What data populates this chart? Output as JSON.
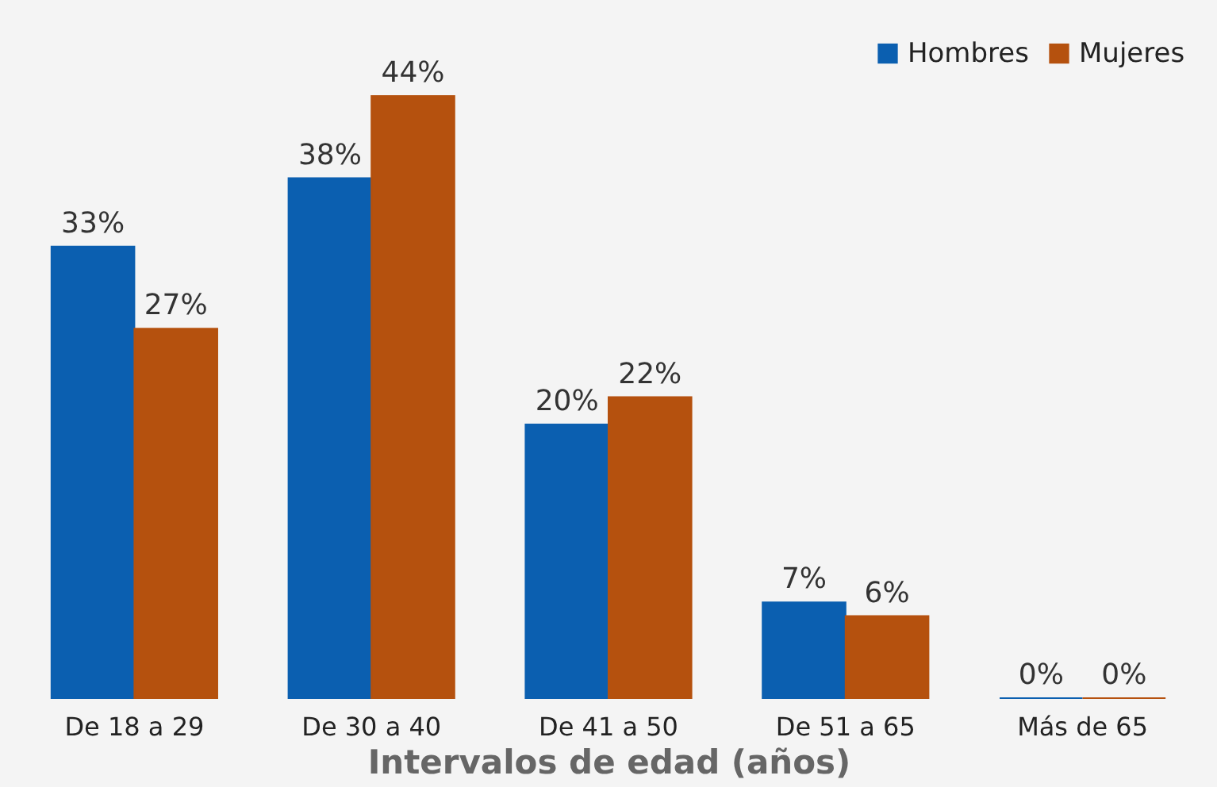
{
  "chart_data": {
    "type": "bar",
    "xlabel": "Intervalos de edad (años)",
    "categories": [
      "De 18 a 29",
      "De 30 a 40",
      "De 41 a 50",
      "De 51 a 65",
      "Más de 65"
    ],
    "series": [
      {
        "name": "Hombres",
        "color": "#0b5fb0",
        "values": [
          33,
          38,
          20,
          7,
          0
        ],
        "value_labels": [
          "33%",
          "38%",
          "20%",
          "7%",
          "0%"
        ]
      },
      {
        "name": "Mujeres",
        "color": "#b5510e",
        "values": [
          27,
          44,
          22,
          6,
          0
        ],
        "value_labels": [
          "27%",
          "44%",
          "22%",
          "6%",
          "0%"
        ]
      }
    ],
    "legend": "top right",
    "grid": false
  }
}
